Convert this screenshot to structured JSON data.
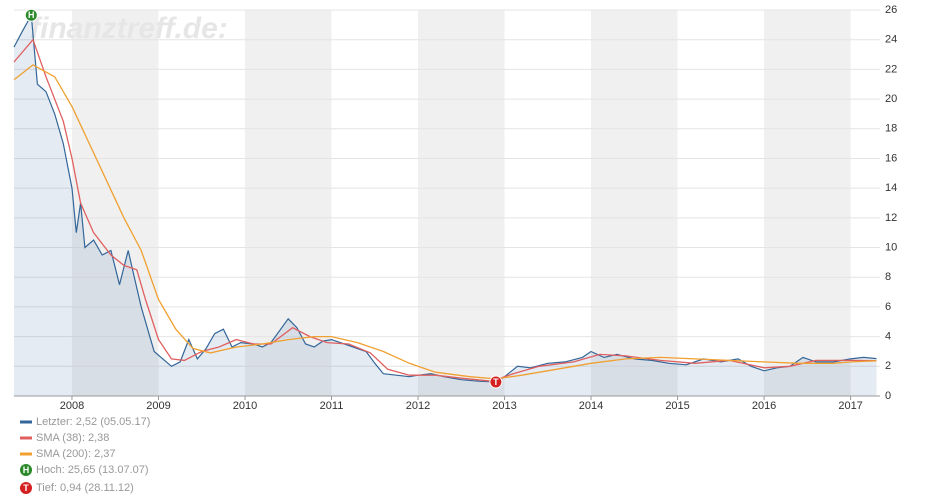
{
  "chart_data": {
    "type": "line",
    "watermark": "finanztreff.de:",
    "xlim": [
      2007.33,
      2017.34
    ],
    "xticks": [
      2008,
      2009,
      2010,
      2011,
      2012,
      2013,
      2014,
      2015,
      2016,
      2017
    ],
    "ylim": [
      0,
      26
    ],
    "yticks": [
      0,
      2,
      4,
      6,
      8,
      10,
      12,
      14,
      16,
      18,
      20,
      22,
      24,
      26
    ],
    "grid": true,
    "series": [
      {
        "name": "Letzter: 2,52 (05.05.17)",
        "color": "#336699",
        "area": true,
        "x": [
          2007.33,
          2007.42,
          2007.53,
          2007.6,
          2007.7,
          2007.8,
          2007.9,
          2008.0,
          2008.05,
          2008.1,
          2008.15,
          2008.25,
          2008.35,
          2008.45,
          2008.55,
          2008.65,
          2008.72,
          2008.8,
          2008.9,
          2008.95,
          2009.05,
          2009.15,
          2009.25,
          2009.35,
          2009.45,
          2009.55,
          2009.65,
          2009.75,
          2009.85,
          2009.95,
          2010.1,
          2010.2,
          2010.3,
          2010.4,
          2010.5,
          2010.6,
          2010.7,
          2010.8,
          2010.9,
          2011.0,
          2011.1,
          2011.2,
          2011.3,
          2011.4,
          2011.5,
          2011.6,
          2011.75,
          2011.9,
          2012.0,
          2012.15,
          2012.3,
          2012.5,
          2012.7,
          2012.9,
          2013.0,
          2013.15,
          2013.3,
          2013.5,
          2013.7,
          2013.9,
          2014.0,
          2014.15,
          2014.3,
          2014.5,
          2014.7,
          2014.9,
          2015.1,
          2015.3,
          2015.5,
          2015.7,
          2015.85,
          2016.0,
          2016.15,
          2016.3,
          2016.45,
          2016.6,
          2016.8,
          2017.0,
          2017.15,
          2017.3
        ],
        "values": [
          23.5,
          24.5,
          25.65,
          21,
          20.5,
          19,
          17,
          14,
          11,
          13,
          10,
          10.5,
          9.5,
          9.8,
          7.5,
          9.8,
          8,
          6,
          4,
          3,
          2.5,
          2,
          2.3,
          3.8,
          2.5,
          3.2,
          4.2,
          4.5,
          3.3,
          3.6,
          3.5,
          3.3,
          3.6,
          4.4,
          5.2,
          4.6,
          3.5,
          3.3,
          3.7,
          3.8,
          3.6,
          3.4,
          3.2,
          3.0,
          2.2,
          1.5,
          1.4,
          1.3,
          1.4,
          1.5,
          1.3,
          1.1,
          1.0,
          0.94,
          1.3,
          2.0,
          1.9,
          2.2,
          2.3,
          2.6,
          3.0,
          2.6,
          2.8,
          2.5,
          2.4,
          2.2,
          2.1,
          2.5,
          2.3,
          2.5,
          2.0,
          1.7,
          1.9,
          2.0,
          2.6,
          2.3,
          2.3,
          2.5,
          2.6,
          2.52
        ]
      },
      {
        "name": "SMA (38): 2,38",
        "color": "#e06060",
        "x": [
          2007.33,
          2007.55,
          2007.7,
          2007.9,
          2008.0,
          2008.1,
          2008.25,
          2008.45,
          2008.6,
          2008.75,
          2008.85,
          2009.0,
          2009.15,
          2009.3,
          2009.5,
          2009.7,
          2009.9,
          2010.1,
          2010.3,
          2010.55,
          2010.75,
          2010.95,
          2011.2,
          2011.45,
          2011.65,
          2011.9,
          2012.2,
          2012.5,
          2012.85,
          2013.1,
          2013.4,
          2013.8,
          2014.1,
          2014.4,
          2014.8,
          2015.2,
          2015.6,
          2016.0,
          2016.3,
          2016.6,
          2017.0,
          2017.3
        ],
        "values": [
          22.5,
          24,
          21.5,
          18.5,
          16,
          13,
          11,
          9.5,
          8.8,
          8.5,
          6.5,
          3.8,
          2.5,
          2.4,
          3.0,
          3.3,
          3.8,
          3.5,
          3.5,
          4.6,
          4.0,
          3.6,
          3.5,
          2.9,
          1.8,
          1.4,
          1.4,
          1.2,
          1.0,
          1.5,
          2.0,
          2.3,
          2.8,
          2.7,
          2.4,
          2.2,
          2.4,
          1.9,
          2.0,
          2.4,
          2.4,
          2.38
        ]
      },
      {
        "name": "SMA (200): 2,37",
        "color": "#f0a030",
        "x": [
          2007.33,
          2007.55,
          2007.8,
          2008.0,
          2008.2,
          2008.4,
          2008.6,
          2008.8,
          2009.0,
          2009.2,
          2009.4,
          2009.6,
          2009.9,
          2010.2,
          2010.5,
          2010.8,
          2011.0,
          2011.3,
          2011.6,
          2011.9,
          2012.2,
          2012.6,
          2012.9,
          2013.2,
          2013.6,
          2014.0,
          2014.4,
          2014.8,
          2015.2,
          2015.6,
          2016.0,
          2016.4,
          2016.8,
          2017.0,
          2017.3
        ],
        "values": [
          21.3,
          22.3,
          21.5,
          19.5,
          17,
          14.5,
          12,
          9.8,
          6.5,
          4.5,
          3.2,
          2.9,
          3.3,
          3.5,
          3.8,
          4.0,
          4.0,
          3.6,
          3.0,
          2.2,
          1.6,
          1.3,
          1.15,
          1.4,
          1.8,
          2.2,
          2.5,
          2.6,
          2.5,
          2.4,
          2.3,
          2.2,
          2.2,
          2.3,
          2.37
        ]
      }
    ],
    "markers": [
      {
        "symbol": "H",
        "x": 2007.53,
        "value": 25.65,
        "color": "#2a8a2a",
        "label": "Hoch: 25,65 (13.07.07)"
      },
      {
        "symbol": "T",
        "x": 2012.9,
        "value": 0.94,
        "color": "#d42020",
        "label": "Tief: 0,94 (28.11.12)"
      }
    ]
  }
}
